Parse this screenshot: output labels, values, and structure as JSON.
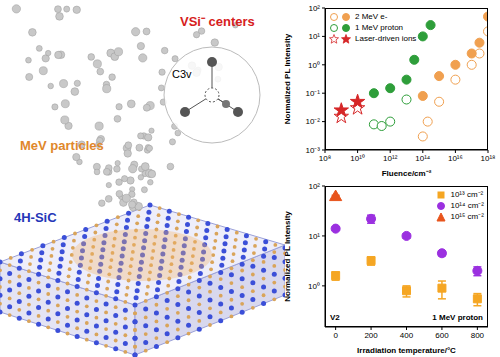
{
  "illustration": {
    "labels": {
      "particles": "MeV particles",
      "defect": "VSi⁻ centers",
      "symmetry": "C3v",
      "material": "4H-SiC"
    }
  },
  "chart_data": [
    {
      "type": "scatter",
      "x_label": "Fluence/cm⁻²",
      "y_label": "Normalized PL Intensity",
      "log": true,
      "grid": false,
      "legend": "upper left",
      "xlim": [
        100000000.0,
        1e+18
      ],
      "xticks": [
        {
          "value": 100000000.0,
          "label": "10⁸"
        },
        {
          "value": 10000000000.0,
          "label": "10¹⁰"
        },
        {
          "value": 1000000000000.0,
          "label": "10¹²"
        },
        {
          "value": 100000000000000.0,
          "label": "10¹⁴"
        },
        {
          "value": 1e+16,
          "label": "10¹⁶"
        },
        {
          "value": 1e+18,
          "label": "10¹⁸"
        }
      ],
      "ylim": [
        0.001,
        100
      ],
      "yticks": [
        {
          "value": 0.001,
          "label": "10⁻³"
        },
        {
          "value": 0.01,
          "label": "10⁻²"
        },
        {
          "value": 0.1,
          "label": "10⁻¹"
        },
        {
          "value": 1,
          "label": "10⁰"
        },
        {
          "value": 10,
          "label": "10¹"
        },
        {
          "value": 100,
          "label": "10²"
        }
      ],
      "series": [
        {
          "name": "2 MeV e-",
          "color": "#f0a050",
          "marker": "circle",
          "open": {
            "x": [
              100000000000000.0,
              200000000000000.0,
              1000000000000000.0,
              1e+16,
              1e+17,
              3e+17,
              1e+18
            ],
            "values": [
              0.003,
              0.01,
              0.05,
              0.3,
              1.0,
              2.5,
              15
            ]
          },
          "filled": {
            "x": [
              100000000000000.0,
              1000000000000000.0,
              1e+16,
              1e+17,
              3e+17,
              1e+18
            ],
            "values": [
              0.08,
              0.4,
              1.0,
              2.5,
              6,
              50
            ]
          }
        },
        {
          "name": "1 MeV proton",
          "color": "#2e9e3a",
          "marker": "circle",
          "open": {
            "x": [
              100000000000.0,
              300000000000.0,
              1000000000000.0,
              10000000000000.0
            ],
            "values": [
              0.008,
              0.007,
              0.01,
              0.06
            ]
          },
          "filled": {
            "x": [
              100000000000.0,
              1000000000000.0,
              10000000000000.0,
              30000000000000.0,
              100000000000000.0,
              300000000000000.0
            ],
            "values": [
              0.1,
              0.15,
              0.3,
              1.5,
              10,
              25
            ]
          }
        },
        {
          "name": "Laser-driven ions",
          "color": "#d62728",
          "marker": "star",
          "open": {
            "x": [
              1000000000.0,
              10000000000.0
            ],
            "values": [
              0.015,
              0.03
            ]
          },
          "filled": {
            "x": [
              1000000000.0,
              10000000000.0
            ],
            "values": [
              0.025,
              0.05
            ]
          }
        }
      ]
    },
    {
      "type": "scatter",
      "x_label": "Irradiation temperature/°C",
      "y_label": "Normalized PL Intensity",
      "log": "y",
      "grid": false,
      "legend": "upper right",
      "xlim": [
        -60,
        860
      ],
      "xticks": [
        0,
        200,
        400,
        600,
        800
      ],
      "ylim": [
        0.15,
        100
      ],
      "yticks": [
        {
          "value": 1,
          "label": "10⁰"
        },
        {
          "value": 10,
          "label": "10¹"
        },
        {
          "value": 100,
          "label": "10²"
        }
      ],
      "annotations": [
        "V2",
        "1 MeV proton"
      ],
      "series": [
        {
          "name": "10¹³ cm⁻²",
          "color": "#f5a623",
          "marker": "square",
          "x": [
            0,
            200,
            400,
            600,
            800
          ],
          "values": [
            1.6,
            3.2,
            0.8,
            0.9,
            0.55
          ],
          "errors": [
            0.3,
            0.6,
            0.2,
            0.35,
            0.15
          ]
        },
        {
          "name": "10¹⁴ cm⁻²",
          "color": "#9b30e0",
          "marker": "circle",
          "x": [
            0,
            200,
            400,
            600,
            800
          ],
          "values": [
            14,
            22,
            10,
            4.5,
            2.0
          ],
          "errors": [
            1,
            4,
            1,
            0.5,
            0.4
          ]
        },
        {
          "name": "10¹⁵ cm⁻²",
          "color": "#e8541c",
          "marker": "triangle",
          "x": [
            0
          ],
          "values": [
            60
          ],
          "errors": [
            5
          ]
        }
      ]
    }
  ]
}
